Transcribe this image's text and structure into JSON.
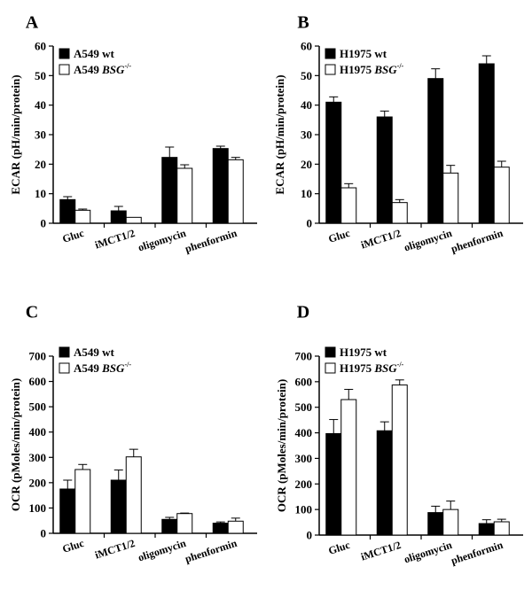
{
  "chart_data": [
    {
      "panel": "A",
      "type": "bar",
      "ylabel": "ECAR (pH/min/protein)",
      "ylim": [
        0,
        60
      ],
      "yticks": [
        0,
        10,
        20,
        30,
        40,
        50,
        60
      ],
      "categories": [
        "Gluc",
        "iMCT1/2",
        "oligomycin",
        "phenformin"
      ],
      "legend": "top-left",
      "series": [
        {
          "name": "A549 wt",
          "fill": "#000000",
          "values": [
            8.0,
            4.2,
            22.3,
            25.3
          ],
          "errors": [
            1.0,
            1.5,
            3.5,
            0.8
          ]
        },
        {
          "name": "A549 BSG-/-",
          "fill": "#ffffff",
          "values": [
            4.4,
            2.0,
            18.6,
            21.5
          ],
          "errors": [
            0.4,
            0.0,
            1.2,
            0.8
          ]
        }
      ]
    },
    {
      "panel": "B",
      "type": "bar",
      "ylabel": "ECAR (pH/min/protein)",
      "ylim": [
        0,
        60
      ],
      "yticks": [
        0,
        10,
        20,
        30,
        40,
        50,
        60
      ],
      "categories": [
        "Gluc",
        "iMCT1/2",
        "oligomycin",
        "phenformin"
      ],
      "legend": "top-left",
      "series": [
        {
          "name": "H1975 wt",
          "fill": "#000000",
          "values": [
            41.0,
            36.0,
            49.0,
            54.0
          ],
          "errors": [
            1.8,
            2.0,
            3.3,
            2.7
          ]
        },
        {
          "name": "H1975 BSG-/-",
          "fill": "#ffffff",
          "values": [
            12.0,
            7.0,
            17.0,
            19.0
          ],
          "errors": [
            1.4,
            1.0,
            2.6,
            2.0
          ]
        }
      ]
    },
    {
      "panel": "C",
      "type": "bar",
      "ylabel": "OCR (pMoles/min/protein)",
      "ylim": [
        0,
        700
      ],
      "yticks": [
        0,
        100,
        200,
        300,
        400,
        500,
        600,
        700
      ],
      "categories": [
        "Gluc",
        "iMCT1/2",
        "oligomycin",
        "phenformin"
      ],
      "legend": "top-left",
      "series": [
        {
          "name": "A549 wt",
          "fill": "#000000",
          "values": [
            175,
            210,
            55,
            40
          ],
          "errors": [
            35,
            40,
            8,
            5
          ]
        },
        {
          "name": "A549 BSG-/-",
          "fill": "#ffffff",
          "values": [
            252,
            302,
            78,
            48
          ],
          "errors": [
            20,
            30,
            2,
            12
          ]
        }
      ]
    },
    {
      "panel": "D",
      "type": "bar",
      "ylabel": "OCR (pMoles/min/protein)",
      "ylim": [
        0,
        700
      ],
      "yticks": [
        0,
        100,
        200,
        300,
        400,
        500,
        600,
        700
      ],
      "categories": [
        "Gluc",
        "iMCT1/2",
        "oligomycin",
        "phenformin"
      ],
      "legend": "top-left",
      "series": [
        {
          "name": "H1975 wt",
          "fill": "#000000",
          "values": [
            397,
            408,
            88,
            45
          ],
          "errors": [
            55,
            35,
            25,
            15
          ]
        },
        {
          "name": "H1975 BSG-/-",
          "fill": "#ffffff",
          "values": [
            530,
            587,
            100,
            52
          ],
          "errors": [
            40,
            20,
            33,
            10
          ]
        }
      ]
    }
  ]
}
